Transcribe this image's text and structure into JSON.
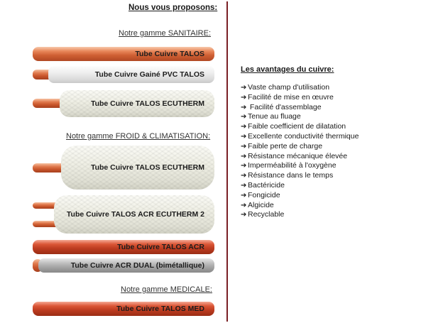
{
  "heading": "Nous vous proposons:",
  "sections": {
    "sanitaire": "Notre gamme SANITAIRE:",
    "froid": "Notre gamme FROID & CLIMATISATION:",
    "medicale": "Notre gamme MEDICALE:"
  },
  "products": [
    "Tube Cuivre TALOS",
    "Tube Cuivre Gainé PVC TALOS",
    "Tube Cuivre TALOS ECUTHERM",
    "Tube Cuivre TALOS ECUTHERM",
    "Tube Cuivre TALOS ACR ECUTHERM 2",
    "Tube Cuivre TALOS ACR",
    "Tube Cuivre ACR DUAL (bimétallique)",
    "Tube Cuivre TALOS MED"
  ],
  "advantages": {
    "title": "Les avantages du cuivre:",
    "items": [
      "Vaste champ d'utilisation",
      "Facilité de mise en œuvre",
      " Facilité d'assemblage",
      "Tenue au fluage",
      "Faible coefficient de dilatation",
      "Excellente conductivité thermique",
      "Faible perte de charge",
      "Résistance mécanique élevée",
      "Imperméabilité à l'oxygène",
      "Résistance dans le temps",
      "Bactéricide",
      "Fongicide",
      "Algicide",
      "Recyclable"
    ]
  },
  "colors": {
    "divider": "#7a1f24",
    "copper": "#cf5f33",
    "foam": "#f0f0e6"
  }
}
